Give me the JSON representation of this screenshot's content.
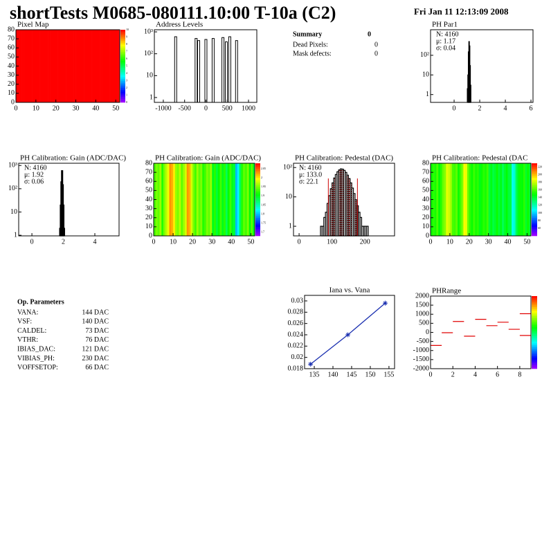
{
  "title": "shortTests M0685-080111.10:00 T-10a (C2)",
  "date": "Fri Jan 11 12:13:09 2008",
  "summary": {
    "title": "Summary",
    "value": 0,
    "rows": [
      [
        "Dead Pixels:",
        0
      ],
      [
        "Mask defects:",
        0
      ]
    ]
  },
  "op_parameters": {
    "title": "Op. Parameters",
    "rows": [
      [
        "VANA:",
        "144 DAC"
      ],
      [
        "VSF:",
        "140 DAC"
      ],
      [
        "CALDEL:",
        "73 DAC"
      ],
      [
        "VTHR:",
        "76 DAC"
      ],
      [
        "IBIAS_DAC:",
        "121 DAC"
      ],
      [
        "VIBIAS_PH:",
        "230 DAC"
      ],
      [
        "VOFFSETOP:",
        "66 DAC"
      ]
    ]
  },
  "chart_data": [
    {
      "type": "heatmap",
      "title": "Pixel Map",
      "xlim": [
        0,
        52
      ],
      "ylim": [
        0,
        80
      ],
      "xticks": [
        0,
        10,
        20,
        30,
        40,
        50
      ],
      "yticks": [
        0,
        10,
        20,
        30,
        40,
        50,
        60,
        70,
        80
      ],
      "zlim": [
        0,
        10
      ],
      "zticks": [
        0,
        1,
        2,
        3,
        4,
        5,
        6,
        7,
        8,
        9,
        10
      ],
      "columns": [
        10,
        10,
        10,
        10,
        10,
        10,
        10,
        10,
        10,
        10,
        10,
        10,
        10,
        10,
        10,
        10,
        10,
        10,
        10,
        10,
        10,
        10,
        10,
        10,
        10,
        10,
        10,
        10,
        10,
        10,
        10,
        10,
        10,
        10,
        10,
        10,
        10,
        10,
        10,
        10,
        10,
        10,
        10,
        10,
        10,
        10,
        10,
        10,
        10,
        10,
        10,
        10
      ]
    },
    {
      "type": "spikes",
      "title": "Address Levels",
      "log_y": true,
      "xlim": [
        -1210,
        1195
      ],
      "ylim": [
        0.6,
        1250
      ],
      "xticks": [
        -1000,
        -500,
        0,
        500,
        1000
      ],
      "yticks": [
        1,
        10,
        {
          "value": 100,
          "label": "10²"
        },
        {
          "value": 1000,
          "label": "10³"
        }
      ],
      "x": [
        -710,
        -230,
        -170,
        0,
        170,
        400,
        480,
        560,
        720
      ],
      "values": [
        600,
        500,
        400,
        450,
        500,
        550,
        350,
        600,
        400
      ],
      "color": "#000000"
    },
    {
      "type": "histogram",
      "title": "PH Par1",
      "log_y": true,
      "xlim": [
        -1.84,
        6.16
      ],
      "ylim": [
        0.4,
        2000
      ],
      "xticks": [
        0,
        2,
        4,
        6
      ],
      "yticks": [
        1,
        10,
        {
          "value": 100,
          "label": "10²"
        }
      ],
      "bins": [
        1.03,
        1.07,
        1.11,
        1.15,
        1.19,
        1.23,
        1.27,
        1.31
      ],
      "values": [
        2,
        10,
        150,
        500,
        300,
        30,
        3
      ],
      "stats": [
        "N: 4160",
        "μ: 1.17",
        "σ: 0.04"
      ],
      "color": "#000000"
    },
    {
      "type": "histogram",
      "title": "PH Calibration: Gain (ADC/DAC)",
      "log_y": true,
      "xlim": [
        -0.84,
        5.54
      ],
      "ylim": [
        0.94,
        1250
      ],
      "xticks": [
        0,
        2,
        4
      ],
      "yticks": [
        1,
        10,
        {
          "value": 100,
          "label": "10²"
        },
        {
          "value": 1000,
          "label": "10³"
        }
      ],
      "bins": [
        1.76,
        1.8,
        1.84,
        1.88,
        1.92,
        1.96,
        2.0,
        2.04,
        2.08
      ],
      "values": [
        2,
        20,
        200,
        600,
        600,
        150,
        20,
        2
      ],
      "stats": [
        "N: 4160",
        "μ: 1.92",
        "σ: 0.06"
      ],
      "color": "#000000"
    },
    {
      "type": "heatmap",
      "title": "PH Calibration: Gain (ADC/DAC)",
      "xlim": [
        0,
        52
      ],
      "ylim": [
        0,
        80
      ],
      "xticks": [
        0,
        10,
        20,
        30,
        40,
        50
      ],
      "yticks": [
        0,
        10,
        20,
        30,
        40,
        50,
        60,
        70,
        80
      ],
      "zlim": [
        1.68,
        2.08
      ],
      "zticks": [
        1.7,
        1.75,
        1.8,
        1.85,
        1.9,
        1.95,
        2,
        2.05
      ],
      "columns": [
        1.93,
        1.95,
        1.94,
        1.96,
        1.92,
        1.95,
        1.97,
        1.99,
        2.03,
        2.02,
        2.0,
        1.96,
        1.95,
        1.97,
        1.94,
        1.96,
        1.98,
        2.03,
        2.02,
        1.98,
        1.95,
        1.93,
        1.96,
        1.94,
        1.95,
        1.92,
        1.93,
        1.95,
        1.94,
        1.96,
        1.9,
        1.92,
        1.89,
        1.91,
        1.93,
        1.9,
        1.92,
        1.88,
        1.91,
        1.93,
        1.9,
        1.89,
        1.8,
        1.82,
        1.88,
        1.92,
        1.94,
        1.93,
        1.95,
        1.91,
        1.94,
        1.9
      ]
    },
    {
      "type": "histogram",
      "title": "PH Calibration: Pedestal (DAC)",
      "log_y": true,
      "xlim": [
        -17,
        290
      ],
      "ylim": [
        0.47,
        140
      ],
      "xticks": [
        0,
        100,
        200
      ],
      "yticks": [
        1,
        10,
        {
          "value": 100,
          "label": "10²"
        }
      ],
      "bins": [
        65,
        70,
        75,
        80,
        85,
        90,
        95,
        100,
        105,
        110,
        115,
        120,
        125,
        130,
        135,
        140,
        145,
        150,
        155,
        160,
        165,
        170,
        175,
        180,
        185,
        190,
        195,
        200,
        205,
        210
      ],
      "values": [
        1,
        1,
        2,
        3,
        6,
        11,
        19,
        30,
        44,
        58,
        72,
        83,
        90,
        88,
        80,
        68,
        55,
        42,
        30,
        20,
        13,
        8,
        5,
        3,
        2,
        1,
        1,
        1,
        1
      ],
      "stats": [
        "N: 4160",
        "μ: 133.0",
        "σ: 22.1"
      ],
      "stats_colors": [
        "#000000",
        "#cc0000",
        "#cc0000"
      ],
      "cut_lines": [
        88.8,
        177.2
      ],
      "cut_color": "#cc0000",
      "color": "#000000"
    },
    {
      "type": "heatmap",
      "title": "PH Calibration: Pedestal (DAC",
      "xlim": [
        0,
        52
      ],
      "ylim": [
        0,
        80
      ],
      "xticks": [
        0,
        10,
        20,
        30,
        40,
        50
      ],
      "yticks": [
        0,
        10,
        20,
        30,
        40,
        50,
        60,
        70,
        80
      ],
      "zlim": [
        40,
        230
      ],
      "zticks": [
        60,
        80,
        100,
        120,
        140,
        160,
        180,
        200,
        220
      ],
      "columns": [
        150,
        155,
        152,
        160,
        148,
        155,
        165,
        170,
        185,
        182,
        175,
        160,
        158,
        163,
        150,
        158,
        168,
        190,
        186,
        165,
        155,
        150,
        158,
        152,
        155,
        145,
        150,
        155,
        152,
        158,
        140,
        145,
        138,
        142,
        150,
        140,
        145,
        135,
        142,
        148,
        140,
        138,
        110,
        115,
        135,
        145,
        150,
        148,
        155,
        142,
        150,
        140
      ]
    },
    {
      "type": "line",
      "title": "Iana vs. Vana",
      "xlim": [
        132.4,
        156.5
      ],
      "ylim": [
        0.018,
        0.03098
      ],
      "xticks": [
        135,
        140,
        145,
        150,
        155
      ],
      "yticks": [
        0.018,
        0.02,
        0.022,
        0.024,
        0.026,
        0.028,
        0.03
      ],
      "x": [
        134,
        144,
        154
      ],
      "values": [
        0.0188,
        0.024,
        0.0296
      ],
      "color": "#1a2fb0"
    },
    {
      "type": "scatter",
      "title": "PHRange",
      "xlim": [
        0,
        9
      ],
      "ylim": [
        -2000,
        2000
      ],
      "xticks": [
        0,
        2,
        4,
        6,
        8
      ],
      "yticks": [
        -2000,
        -1500,
        -1000,
        -500,
        0,
        500,
        1000,
        1500,
        2000
      ],
      "x": [
        0.5,
        1.5,
        2.5,
        3.5,
        4.5,
        5.5,
        6.5,
        7.5,
        8.5,
        8.5
      ],
      "values": [
        -720,
        -20,
        600,
        -210,
        720,
        370,
        560,
        170,
        1030,
        -170
      ],
      "color": "#e00000"
    }
  ]
}
